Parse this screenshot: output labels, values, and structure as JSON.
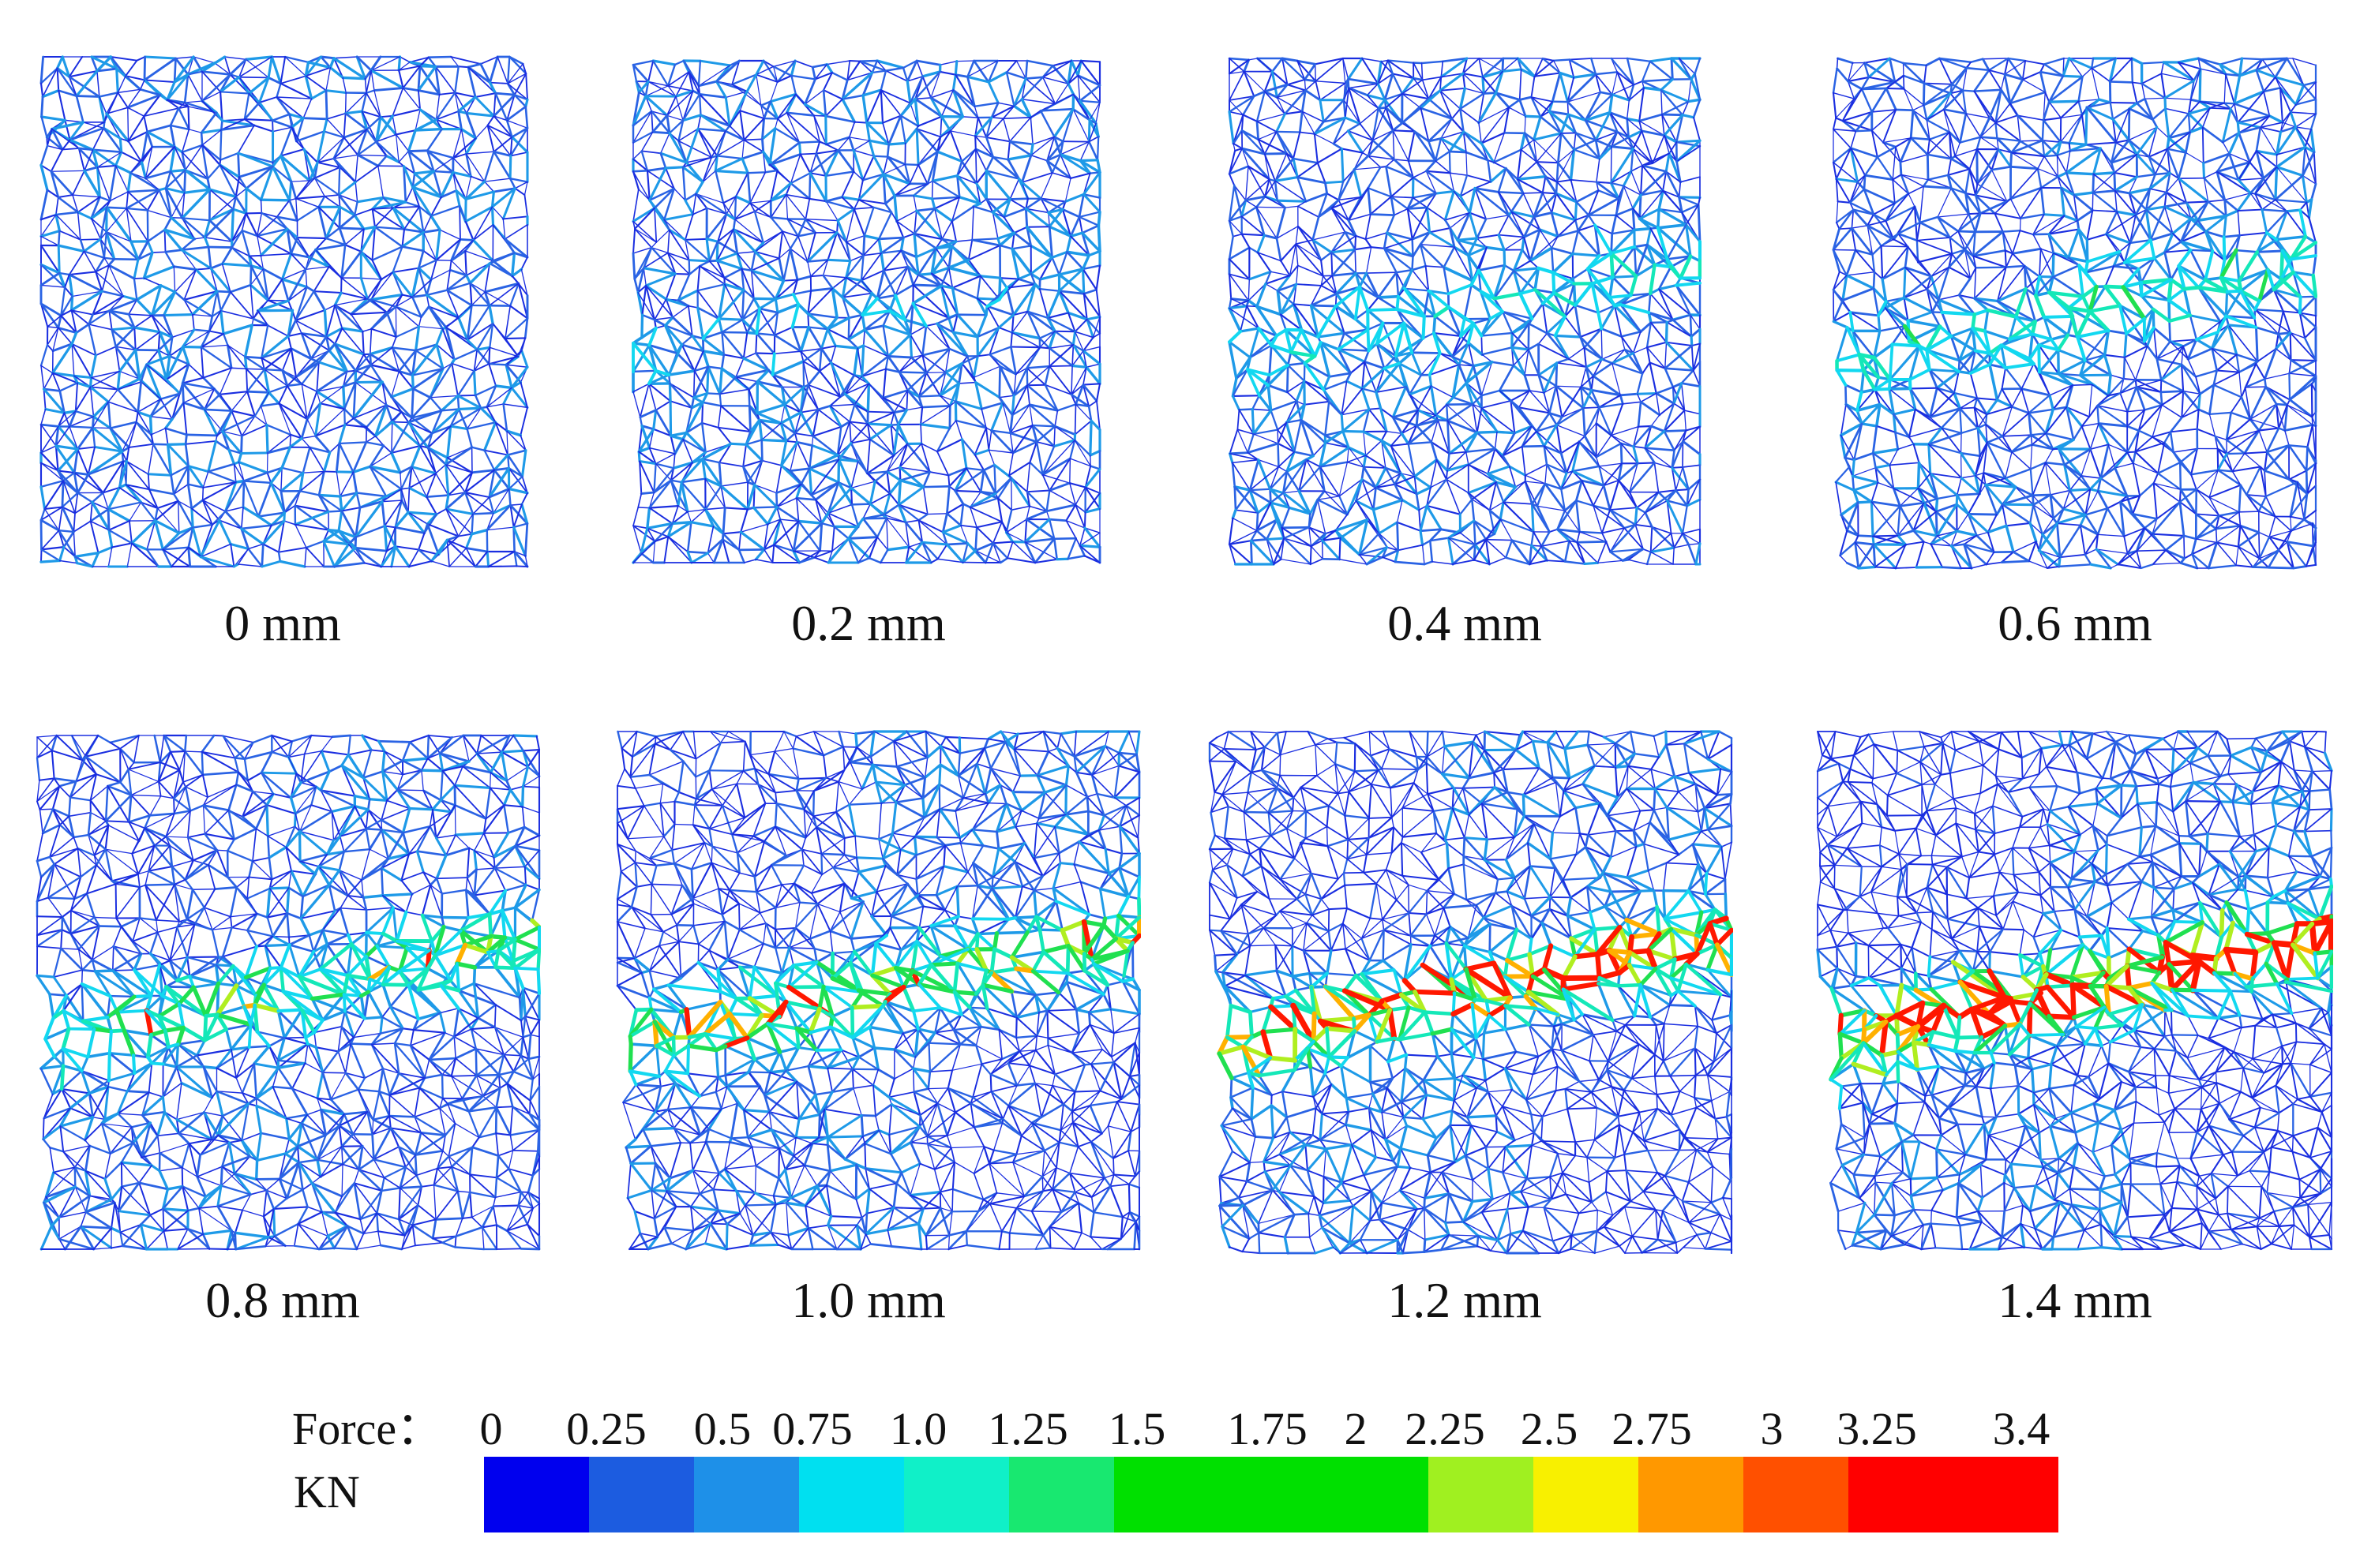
{
  "panels": [
    {
      "label": "0 mm",
      "displacement_mm": 0
    },
    {
      "label": "0.2 mm",
      "displacement_mm": 0.2
    },
    {
      "label": "0.4 mm",
      "displacement_mm": 0.4
    },
    {
      "label": "0.6 mm",
      "displacement_mm": 0.6
    },
    {
      "label": "0.8 mm",
      "displacement_mm": 0.8
    },
    {
      "label": "1.0 mm",
      "displacement_mm": 1.0
    },
    {
      "label": "1.2 mm",
      "displacement_mm": 1.2
    },
    {
      "label": "1.4 mm",
      "displacement_mm": 1.4
    }
  ],
  "legend": {
    "title": "Force：",
    "unit": "KN",
    "ticks": [
      "0",
      "0.25",
      "0.5",
      "0.75",
      "1.0",
      "1.25",
      "1.5",
      "1.75",
      "2",
      "2.25",
      "2.5",
      "2.75",
      "3",
      "3.25",
      "3.4"
    ],
    "colors": [
      "#0000ee",
      "#1c5ce0",
      "#1e90e8",
      "#00e0f0",
      "#10f0c8",
      "#18e870",
      "#00e000",
      "#00e000",
      "#00e000",
      "#a0f020",
      "#f8f000",
      "#ff9800",
      "#ff5000",
      "#ff0000",
      "#ff0000"
    ]
  }
}
